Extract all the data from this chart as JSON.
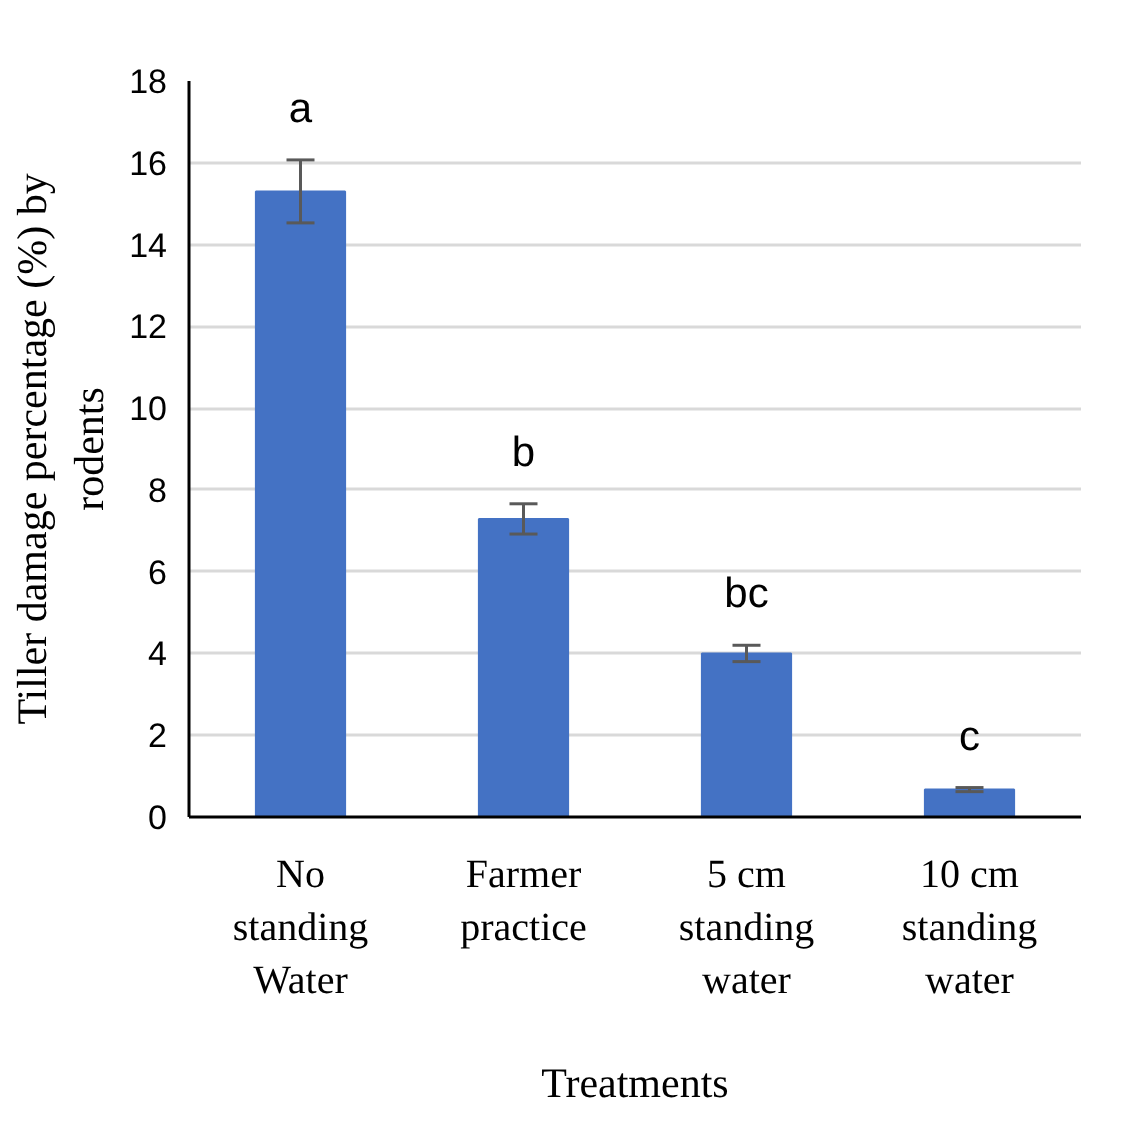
{
  "chart_data": {
    "type": "bar",
    "xlabel": "Treatments",
    "ylabel": "Tiller damage percentage (%) by\nrodents",
    "categories": [
      "No\nstanding\nWater",
      "Farmer\npractice",
      "5 cm\nstanding\nwater",
      "10 cm\nstanding\nwater"
    ],
    "values": [
      15.3,
      7.29,
      4.0,
      0.67
    ],
    "errors": [
      0.77,
      0.37,
      0.2,
      0.05
    ],
    "color": "#4472c4",
    "ylim": [
      0,
      18
    ],
    "yticks": [
      0,
      2,
      4,
      6,
      8,
      10,
      12,
      14,
      16,
      18
    ],
    "grid": "y",
    "annotations": [
      "a",
      "b",
      "bc",
      "c"
    ]
  }
}
